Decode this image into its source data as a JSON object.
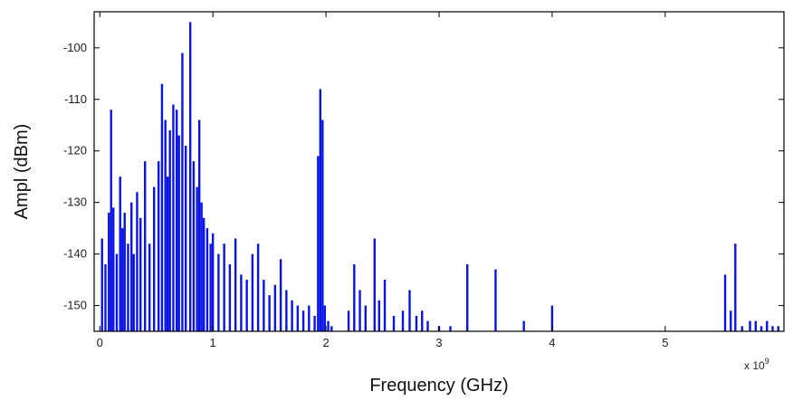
{
  "chart_data": {
    "type": "bar",
    "xlabel": "Frequency (GHz)",
    "ylabel": "Ampl (dBm)",
    "x_exponent_label": "x 10",
    "x_exponent_power": "9",
    "xlim": [
      -0.05,
      6.05
    ],
    "ylim": [
      -155,
      -93
    ],
    "baseline": -155,
    "grid": false,
    "colors": {
      "series": "#0a14e6",
      "axis": "#000000"
    },
    "xticks": [
      {
        "value": 0,
        "label": "0"
      },
      {
        "value": 1,
        "label": "1"
      },
      {
        "value": 2,
        "label": "2"
      },
      {
        "value": 3,
        "label": "3"
      },
      {
        "value": 4,
        "label": "4"
      },
      {
        "value": 5,
        "label": "5"
      }
    ],
    "yticks": [
      {
        "value": -100,
        "label": "-100"
      },
      {
        "value": -110,
        "label": "-110"
      },
      {
        "value": -120,
        "label": "-120"
      },
      {
        "value": -130,
        "label": "-130"
      },
      {
        "value": -140,
        "label": "-140"
      },
      {
        "value": -150,
        "label": "-150"
      }
    ],
    "series": [
      {
        "x": [
          0.02,
          0.05,
          0.08,
          0.1,
          0.12,
          0.15,
          0.18,
          0.2,
          0.22,
          0.25,
          0.28,
          0.3,
          0.33,
          0.36,
          0.4,
          0.44,
          0.48,
          0.52,
          0.55,
          0.58,
          0.6,
          0.62,
          0.65,
          0.68,
          0.7,
          0.73,
          0.76,
          0.8,
          0.83,
          0.86,
          0.88,
          0.9,
          0.92,
          0.95,
          0.98,
          1.0,
          1.05,
          1.1,
          1.15,
          1.2,
          1.25,
          1.3,
          1.35,
          1.4,
          1.45,
          1.5,
          1.55,
          1.6,
          1.65,
          1.7,
          1.75,
          1.8,
          1.85,
          1.9,
          1.93,
          1.95,
          1.97,
          1.99,
          2.02,
          2.05,
          2.2,
          2.25,
          2.3,
          2.35,
          2.43,
          2.47,
          2.52,
          2.6,
          2.68,
          2.74,
          2.8,
          2.85,
          2.9,
          3.0,
          3.1,
          3.25,
          3.5,
          3.75,
          4.0,
          4.5,
          5.0,
          5.53,
          5.58,
          5.62,
          5.68,
          5.75,
          5.8,
          5.85,
          5.9,
          5.95,
          6.0
        ],
        "values": [
          -137,
          -142,
          -132,
          -112,
          -131,
          -140,
          -125,
          -135,
          -132,
          -138,
          -130,
          -140,
          -128,
          -133,
          -122,
          -138,
          -127,
          -122,
          -107,
          -114,
          -125,
          -116,
          -111,
          -112,
          -117,
          -101,
          -119,
          -95,
          -122,
          -127,
          -114,
          -130,
          -133,
          -135,
          -138,
          -136,
          -140,
          -138,
          -142,
          -137,
          -144,
          -145,
          -140,
          -138,
          -145,
          -148,
          -146,
          -141,
          -147,
          -149,
          -150,
          -151,
          -150,
          -152,
          -121,
          -108,
          -114,
          -150,
          -153,
          -154,
          -151,
          -142,
          -147,
          -150,
          -137,
          -149,
          -145,
          -152,
          -151,
          -147,
          -152,
          -151,
          -153,
          -154,
          -154,
          -142,
          -143,
          -153,
          -150,
          -155,
          -155,
          -144,
          -151,
          -138,
          -154,
          -153,
          -153,
          -154,
          -153,
          -154,
          -154
        ]
      }
    ]
  }
}
